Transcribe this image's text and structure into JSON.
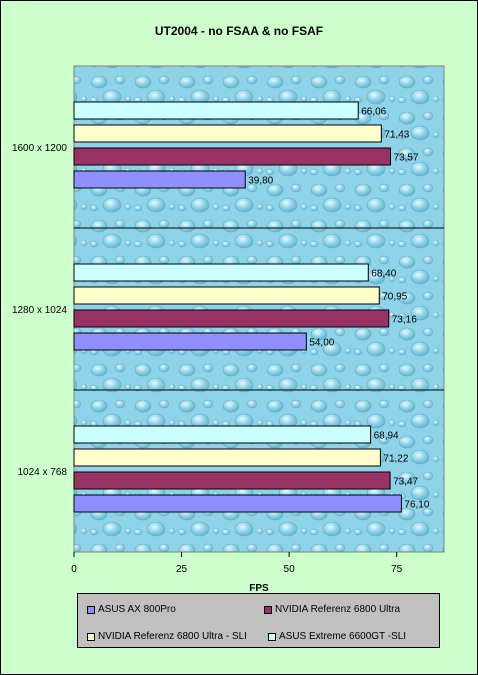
{
  "chart_data": {
    "type": "bar",
    "orientation": "horizontal",
    "title": "UT2004 - no FSAA & no FSAF",
    "xlabel": "FPS",
    "ylabel": "",
    "xlim": [
      0,
      86
    ],
    "x_ticks": [
      "0",
      "25",
      "50",
      "75"
    ],
    "categories": [
      "1600 x 1200",
      "1280 x 1024",
      "1024 x 768"
    ],
    "series": [
      {
        "name": "ASUS AX 800Pro",
        "color": "#8f8fff",
        "values": [
          39.8,
          54.0,
          76.1
        ],
        "labels": [
          "39,80",
          "54,00",
          "76,10"
        ]
      },
      {
        "name": "NVIDIA  Referenz 6800 Ultra",
        "color": "#993366",
        "values": [
          73.57,
          73.16,
          73.47
        ],
        "labels": [
          "73,57",
          "73,16",
          "73,47"
        ]
      },
      {
        "name": "NVIDIA  Referenz 6800 Ultra - SLI",
        "color": "#ffffcc",
        "values": [
          71.43,
          70.95,
          71.22
        ],
        "labels": [
          "71,43",
          "70,95",
          "71,22"
        ]
      },
      {
        "name": "ASUS Extreme 6600GT -SLI",
        "color": "#ccffff",
        "values": [
          66.06,
          68.4,
          68.94
        ],
        "labels": [
          "66,06",
          "68,40",
          "68,94"
        ]
      }
    ],
    "legend_position": "bottom",
    "grid": false
  }
}
